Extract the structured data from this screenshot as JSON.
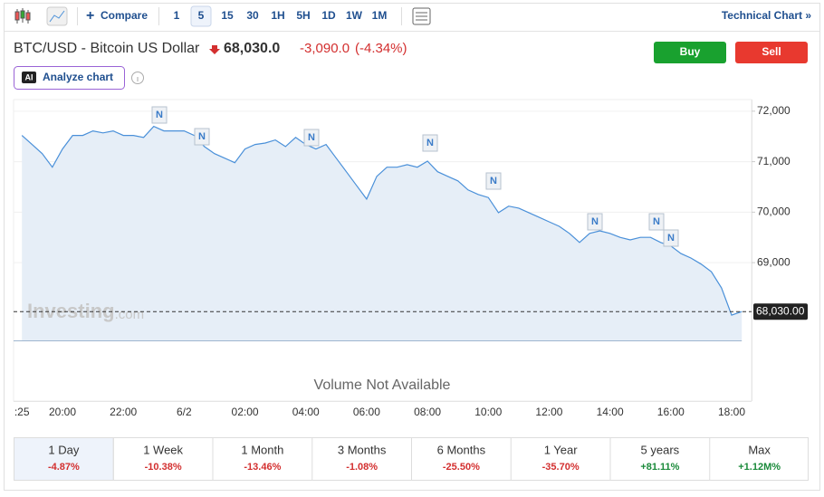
{
  "toolbar": {
    "compare": "Compare",
    "intervals": [
      "1",
      "5",
      "15",
      "30",
      "1H",
      "5H",
      "1D",
      "1W",
      "1M"
    ],
    "selected_interval": "5",
    "technical_chart": "Technical Chart »"
  },
  "header": {
    "title": "BTC/USD - Bitcoin US Dollar",
    "price": "68,030.0",
    "change": "-3,090.0",
    "change_percent": "(-4.34%)",
    "buy": "Buy",
    "sell": "Sell",
    "ai_badge": "AI",
    "analyze": "Analyze chart"
  },
  "chart_data": {
    "type": "line",
    "color": "#4a90d9",
    "categories": [
      ":25",
      null,
      null,
      null,
      "20:00",
      null,
      null,
      null,
      null,
      null,
      "22:00",
      null,
      null,
      null,
      null,
      null,
      "6/2",
      null,
      null,
      null,
      null,
      null,
      "02:00",
      null,
      null,
      null,
      null,
      null,
      "04:00",
      null,
      null,
      null,
      null,
      null,
      "06:00",
      null,
      null,
      null,
      null,
      null,
      "08:00",
      null,
      null,
      null,
      null,
      null,
      "10:00",
      null,
      null,
      null,
      null,
      null,
      "12:00",
      null,
      null,
      null,
      null,
      null,
      "14:00",
      null,
      null,
      null,
      null,
      null,
      "16:00",
      null,
      null,
      null,
      null,
      null,
      "18:00",
      null
    ],
    "values": [
      71520,
      71340,
      71160,
      70890,
      71250,
      71520,
      71520,
      71610,
      71570,
      71610,
      71520,
      71520,
      71480,
      71700,
      71610,
      71610,
      71610,
      71520,
      71300,
      71160,
      71070,
      70980,
      71250,
      71340,
      71370,
      71430,
      71300,
      71480,
      71340,
      71250,
      71340,
      71070,
      70800,
      70530,
      70260,
      70710,
      70890,
      70890,
      70940,
      70890,
      71010,
      70800,
      70710,
      70620,
      70440,
      70350,
      70290,
      69990,
      70120,
      70080,
      69990,
      69900,
      69810,
      69720,
      69580,
      69400,
      69580,
      69630,
      69580,
      69500,
      69450,
      69500,
      69500,
      69400,
      69330,
      69180,
      69090,
      68970,
      68820,
      68500,
      67960,
      68030
    ],
    "ylim": [
      67460,
      72230
    ],
    "yticks": [
      {
        "value": 69000,
        "label": "69,000"
      },
      {
        "value": 70000,
        "label": "70,000"
      },
      {
        "value": 71000,
        "label": "71,000"
      },
      {
        "value": 72000,
        "label": "72,000"
      }
    ],
    "last_value": {
      "value": 68030,
      "label": "68,030.00"
    },
    "annotations": [
      "N",
      "N",
      "N",
      "N",
      "N",
      "N",
      "N",
      "N"
    ],
    "watermark": {
      "brand": "Investing",
      "suffix": ".com"
    },
    "volume_note": "Volume Not Available"
  },
  "periods": [
    {
      "label": "1 Day",
      "change": "-4.87%"
    },
    {
      "label": "1 Week",
      "change": "-10.38%"
    },
    {
      "label": "1 Month",
      "change": "-13.46%"
    },
    {
      "label": "3 Months",
      "change": "-1.08%"
    },
    {
      "label": "6 Months",
      "change": "-25.50%"
    },
    {
      "label": "1 Year",
      "change": "-35.70%"
    },
    {
      "label": "5 years",
      "change": "+81.11%"
    },
    {
      "label": "Max",
      "change": "+1.12M%"
    }
  ]
}
